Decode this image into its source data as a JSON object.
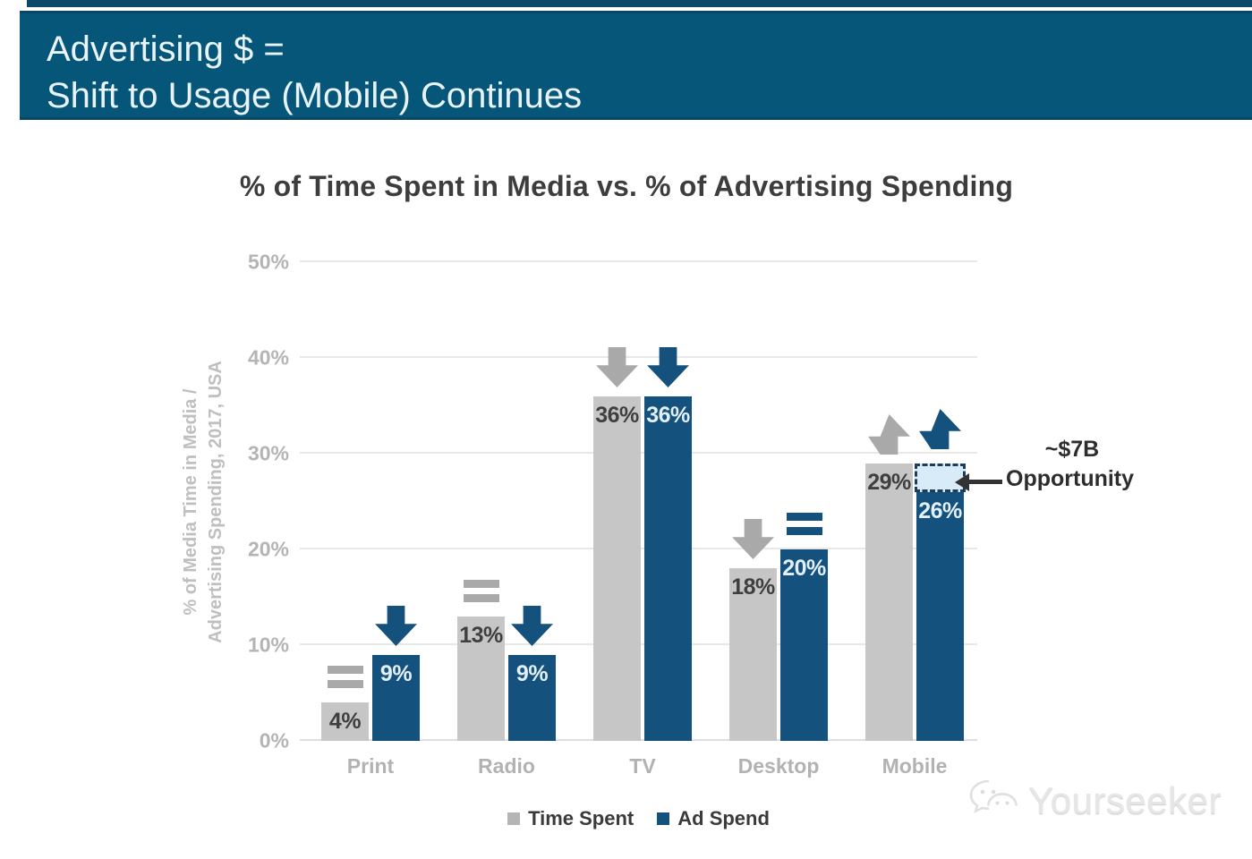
{
  "banner": {
    "title_line1": "Advertising $ =",
    "title_line2": "Shift to Usage (Mobile) Continues"
  },
  "chart_data": {
    "type": "bar",
    "title": "% of Time Spent in Media vs. % of Advertising Spending",
    "ylabel_lines": [
      "% of Media Time in Media /",
      "Advertising Spending, 2017, USA"
    ],
    "categories": [
      "Print",
      "Radio",
      "TV",
      "Desktop",
      "Mobile"
    ],
    "series": [
      {
        "name": "Time Spent",
        "color": "#c6c6c6",
        "values": [
          4,
          13,
          36,
          18,
          29
        ],
        "labels": [
          "4%",
          "13%",
          "36%",
          "18%",
          "29%"
        ],
        "trends": [
          "flat",
          "flat",
          "down",
          "down",
          "up"
        ]
      },
      {
        "name": "Ad Spend",
        "color": "#14517c",
        "values": [
          9,
          9,
          36,
          20,
          26
        ],
        "labels": [
          "9%",
          "9%",
          "36%",
          "20%",
          "26%"
        ],
        "trends": [
          "down",
          "down",
          "down",
          "flat",
          "up"
        ]
      }
    ],
    "ylim": [
      0,
      50
    ],
    "yticks": [
      {
        "value": 0,
        "label": "0%"
      },
      {
        "value": 10,
        "label": "10%"
      },
      {
        "value": 20,
        "label": "20%"
      },
      {
        "value": 30,
        "label": "30%"
      },
      {
        "value": 40,
        "label": "40%"
      },
      {
        "value": 50,
        "label": "50%"
      }
    ],
    "grid": true,
    "legend_position": "bottom",
    "opportunity": {
      "category": "Mobile",
      "series": "Ad Spend",
      "from": 26,
      "to": 29,
      "label_line1": "~$7B",
      "label_line2": "Opportunity"
    }
  },
  "legend": [
    {
      "label": "Time Spent",
      "color": "#b5b5b5"
    },
    {
      "label": "Ad Spend",
      "color": "#14517c"
    }
  ],
  "watermark": {
    "text": "Yourseeker"
  },
  "colors": {
    "banner_background": "#055679",
    "time_spent_gray": "#c6c6c6",
    "ad_spend_blue": "#14517c",
    "trend_icon_gray": "#a9a9a9",
    "opportunity_box_fill": "#d7ebf8",
    "opportunity_box_border": "#1e3d5b",
    "gridline": "#e8e8e8"
  }
}
